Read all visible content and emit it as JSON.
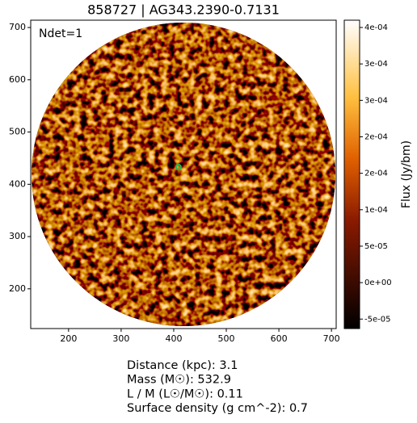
{
  "chart_data": {
    "type": "image",
    "title": "858727 | AG343.2390-0.7131",
    "annotation": "Ndet=1",
    "xlim": [
      128,
      709
    ],
    "ylim": [
      124,
      714
    ],
    "xticks": [
      200,
      300,
      400,
      500,
      600,
      700
    ],
    "yticks": [
      200,
      300,
      400,
      500,
      600,
      700
    ],
    "markers": {
      "x": [
        409
      ],
      "y": [
        433
      ],
      "color": "#1db954"
    },
    "colorbar": {
      "label": "Flux (Jy/bm)",
      "lim": [
        -6.3e-05,
        0.00036
      ],
      "ticks": [
        {
          "value": -5e-05,
          "label": "-5e-05"
        },
        {
          "value": 0,
          "label": "0e+00"
        },
        {
          "value": 5e-05,
          "label": "5e-05"
        },
        {
          "value": 0.0001,
          "label": "1e-04"
        },
        {
          "value": 0.00015,
          "label": "2e-04"
        },
        {
          "value": 0.0002,
          "label": "2e-04"
        },
        {
          "value": 0.00025,
          "label": "3e-04"
        },
        {
          "value": 0.0003,
          "label": "3e-04"
        },
        {
          "value": 0.00035,
          "label": "4e-04"
        }
      ]
    },
    "info": [
      "Distance (kpc): 3.1",
      "Mass (M☉): 532.9",
      "L / M (L☉/M☉): 0.11",
      "Surface density (g cm^-2): 0.7"
    ]
  }
}
